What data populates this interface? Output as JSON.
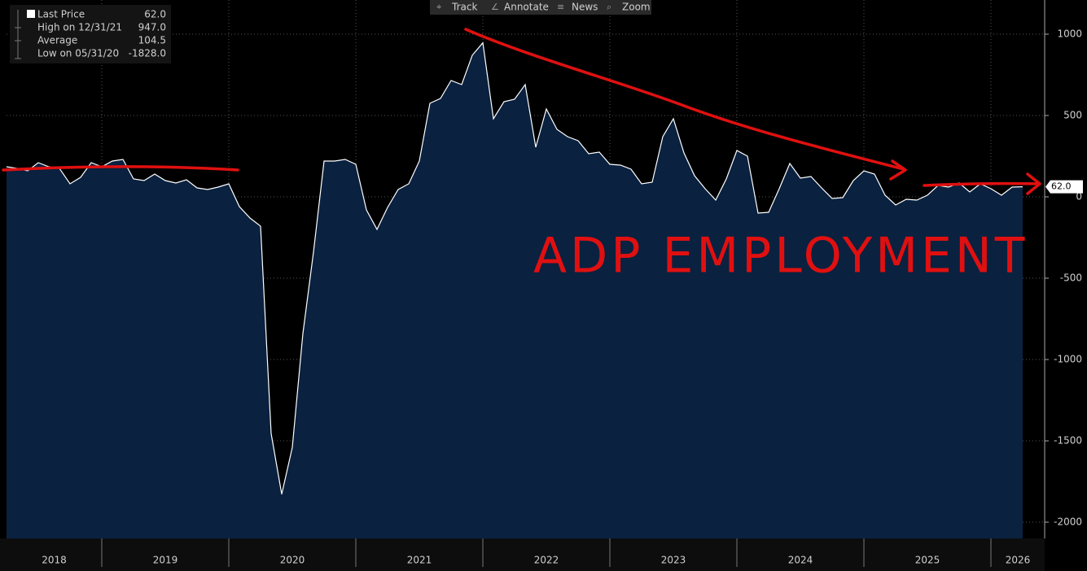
{
  "chart_data": {
    "type": "area",
    "legend": [
      {
        "name": "Last Price",
        "value": "62.0"
      },
      {
        "name": "High on 12/31/21",
        "value": "947.0"
      },
      {
        "name": "Average",
        "value": "104.5"
      },
      {
        "name": "Low on 05/31/20",
        "value": "-1828.0"
      }
    ],
    "toolbar": [
      "Track",
      "Annotate",
      "News",
      "Zoom"
    ],
    "annotation": "ADP EMPLOYMENT",
    "year_labels": [
      "2018",
      "2019",
      "2020",
      "2021",
      "2022",
      "2023",
      "2024",
      "2025",
      "2026"
    ],
    "color": "#0a2140",
    "line_color": "#ffffff",
    "values": [
      185,
      175,
      160,
      210,
      185,
      175,
      80,
      120,
      210,
      185,
      220,
      230,
      110,
      100,
      140,
      100,
      85,
      105,
      55,
      45,
      60,
      80,
      -60,
      -130,
      -180,
      -1455,
      -1828,
      -1540,
      -840,
      -340,
      220,
      220,
      230,
      200,
      -80,
      -200,
      -65,
      45,
      80,
      220,
      575,
      605,
      715,
      690,
      870,
      947,
      480,
      585,
      600,
      690,
      305,
      540,
      415,
      370,
      345,
      265,
      275,
      200,
      195,
      170,
      80,
      90,
      370,
      480,
      270,
      130,
      50,
      -20,
      110,
      285,
      250,
      -100,
      -95,
      50,
      205,
      115,
      125,
      55,
      -10,
      -5,
      100,
      160,
      140,
      10,
      -50,
      -15,
      -20,
      10,
      70,
      60,
      85,
      30,
      80,
      50,
      10,
      60,
      62
    ],
    "ylim": [
      -2100,
      1210
    ],
    "yticks": [
      1000,
      500,
      0,
      -500,
      -1000,
      -1500,
      -2000
    ],
    "grid": true
  }
}
